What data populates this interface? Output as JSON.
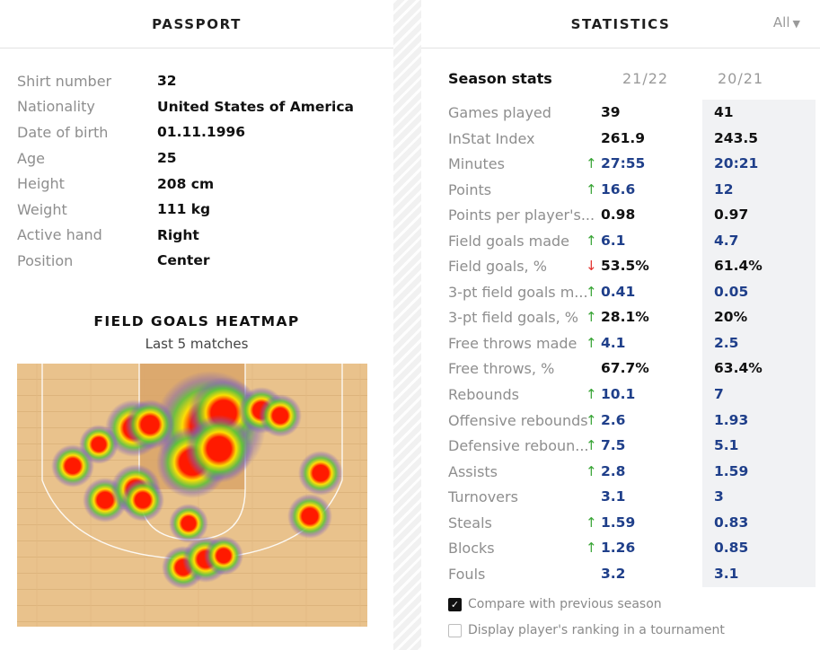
{
  "passport": {
    "title": "PASSPORT",
    "rows": [
      {
        "label": "Shirt number",
        "value": "32"
      },
      {
        "label": "Nationality",
        "value": "United States of America"
      },
      {
        "label": "Date of birth",
        "value": "01.11.1996"
      },
      {
        "label": "Age",
        "value": "25"
      },
      {
        "label": "Height",
        "value": "208 cm"
      },
      {
        "label": "Weight",
        "value": "111 kg"
      },
      {
        "label": "Active hand",
        "value": "Right"
      },
      {
        "label": "Position",
        "value": "Center"
      }
    ]
  },
  "heatmap": {
    "title": "FIELD GOALS HEATMAP",
    "subtitle": "Last 5 matches",
    "colors": {
      "court": "#e9c28c",
      "paint": "#d8a56a",
      "hot": "#ff1a00",
      "warm": "#ffe000",
      "cool": "#5cc23a",
      "edge": "#7a63b8"
    }
  },
  "statistics": {
    "title": "STATISTICS",
    "filter_label": "All",
    "season_label": "Season stats",
    "col1": "21/22",
    "col2": "20/21",
    "colors": {
      "up": "#3aa537",
      "down": "#e3322f",
      "blue": "#1f3f8a"
    },
    "rows": [
      {
        "name": "Games played",
        "arrow": "",
        "v1": "39",
        "v2": "41",
        "tone": "dark"
      },
      {
        "name": "InStat Index",
        "arrow": "",
        "v1": "261.9",
        "v2": "243.5",
        "tone": "dark"
      },
      {
        "name": "Minutes",
        "arrow": "↑",
        "v1": "27:55",
        "v2": "20:21",
        "tone": "blue"
      },
      {
        "name": "Points",
        "arrow": "↑",
        "v1": "16.6",
        "v2": "12",
        "tone": "blue"
      },
      {
        "name": "Points per player's...",
        "arrow": "",
        "v1": "0.98",
        "v2": "0.97",
        "tone": "dark"
      },
      {
        "name": "Field goals made",
        "arrow": "↑",
        "v1": "6.1",
        "v2": "4.7",
        "tone": "blue"
      },
      {
        "name": "Field goals, %",
        "arrow": "↓",
        "v1": "53.5%",
        "v2": "61.4%",
        "tone": "dark"
      },
      {
        "name": "3-pt field goals m...",
        "arrow": "↑",
        "v1": "0.41",
        "v2": "0.05",
        "tone": "blue"
      },
      {
        "name": "3-pt field goals, %",
        "arrow": "↑",
        "v1": "28.1%",
        "v2": "20%",
        "tone": "dark"
      },
      {
        "name": "Free throws made",
        "arrow": "↑",
        "v1": "4.1",
        "v2": "2.5",
        "tone": "blue"
      },
      {
        "name": "Free throws, %",
        "arrow": "",
        "v1": "67.7%",
        "v2": "63.4%",
        "tone": "dark"
      },
      {
        "name": "Rebounds",
        "arrow": "↑",
        "v1": "10.1",
        "v2": "7",
        "tone": "blue"
      },
      {
        "name": "Offensive rebounds",
        "arrow": "↑",
        "v1": "2.6",
        "v2": "1.93",
        "tone": "blue"
      },
      {
        "name": "Defensive reboun...",
        "arrow": "↑",
        "v1": "7.5",
        "v2": "5.1",
        "tone": "blue"
      },
      {
        "name": "Assists",
        "arrow": "↑",
        "v1": "2.8",
        "v2": "1.59",
        "tone": "blue"
      },
      {
        "name": "Turnovers",
        "arrow": "",
        "v1": "3.1",
        "v2": "3",
        "tone": "blue"
      },
      {
        "name": "Steals",
        "arrow": "↑",
        "v1": "1.59",
        "v2": "0.83",
        "tone": "blue"
      },
      {
        "name": "Blocks",
        "arrow": "↑",
        "v1": "1.26",
        "v2": "0.85",
        "tone": "blue"
      },
      {
        "name": "Fouls",
        "arrow": "",
        "v1": "3.2",
        "v2": "3.1",
        "tone": "blue"
      }
    ],
    "options": [
      {
        "label": "Compare with previous season",
        "checked": true
      },
      {
        "label": "Display player's ranking in a tournament",
        "checked": false
      }
    ]
  }
}
